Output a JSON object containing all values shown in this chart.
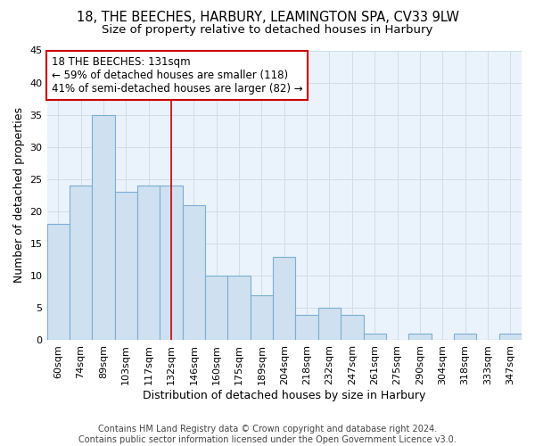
{
  "title1": "18, THE BEECHES, HARBURY, LEAMINGTON SPA, CV33 9LW",
  "title2": "Size of property relative to detached houses in Harbury",
  "xlabel": "Distribution of detached houses by size in Harbury",
  "ylabel": "Number of detached properties",
  "categories": [
    "60sqm",
    "74sqm",
    "89sqm",
    "103sqm",
    "117sqm",
    "132sqm",
    "146sqm",
    "160sqm",
    "175sqm",
    "189sqm",
    "204sqm",
    "218sqm",
    "232sqm",
    "247sqm",
    "261sqm",
    "275sqm",
    "290sqm",
    "304sqm",
    "318sqm",
    "333sqm",
    "347sqm"
  ],
  "values": [
    18,
    24,
    35,
    23,
    24,
    24,
    21,
    10,
    10,
    7,
    13,
    4,
    5,
    4,
    1,
    0,
    1,
    0,
    1,
    0,
    1
  ],
  "bar_color": "#cfe0f0",
  "bar_edge_color": "#7aafd4",
  "grid_color": "#d0dde8",
  "bg_color": "#ffffff",
  "plot_bg_color": "#eaf2fb",
  "annotation_text_line1": "18 THE BEECHES: 131sqm",
  "annotation_text_line2": "← 59% of detached houses are smaller (118)",
  "annotation_text_line3": "41% of semi-detached houses are larger (82) →",
  "annotation_box_facecolor": "#ffffff",
  "annotation_box_edgecolor": "#cc0000",
  "vline_color": "#cc0000",
  "vline_position": 5,
  "ylim": [
    0,
    45
  ],
  "yticks": [
    0,
    5,
    10,
    15,
    20,
    25,
    30,
    35,
    40,
    45
  ],
  "footer1": "Contains HM Land Registry data © Crown copyright and database right 2024.",
  "footer2": "Contains public sector information licensed under the Open Government Licence v3.0.",
  "title1_fontsize": 10.5,
  "title2_fontsize": 9.5,
  "xlabel_fontsize": 9,
  "ylabel_fontsize": 9,
  "tick_fontsize": 8,
  "annotation_fontsize": 8.5,
  "footer_fontsize": 7
}
